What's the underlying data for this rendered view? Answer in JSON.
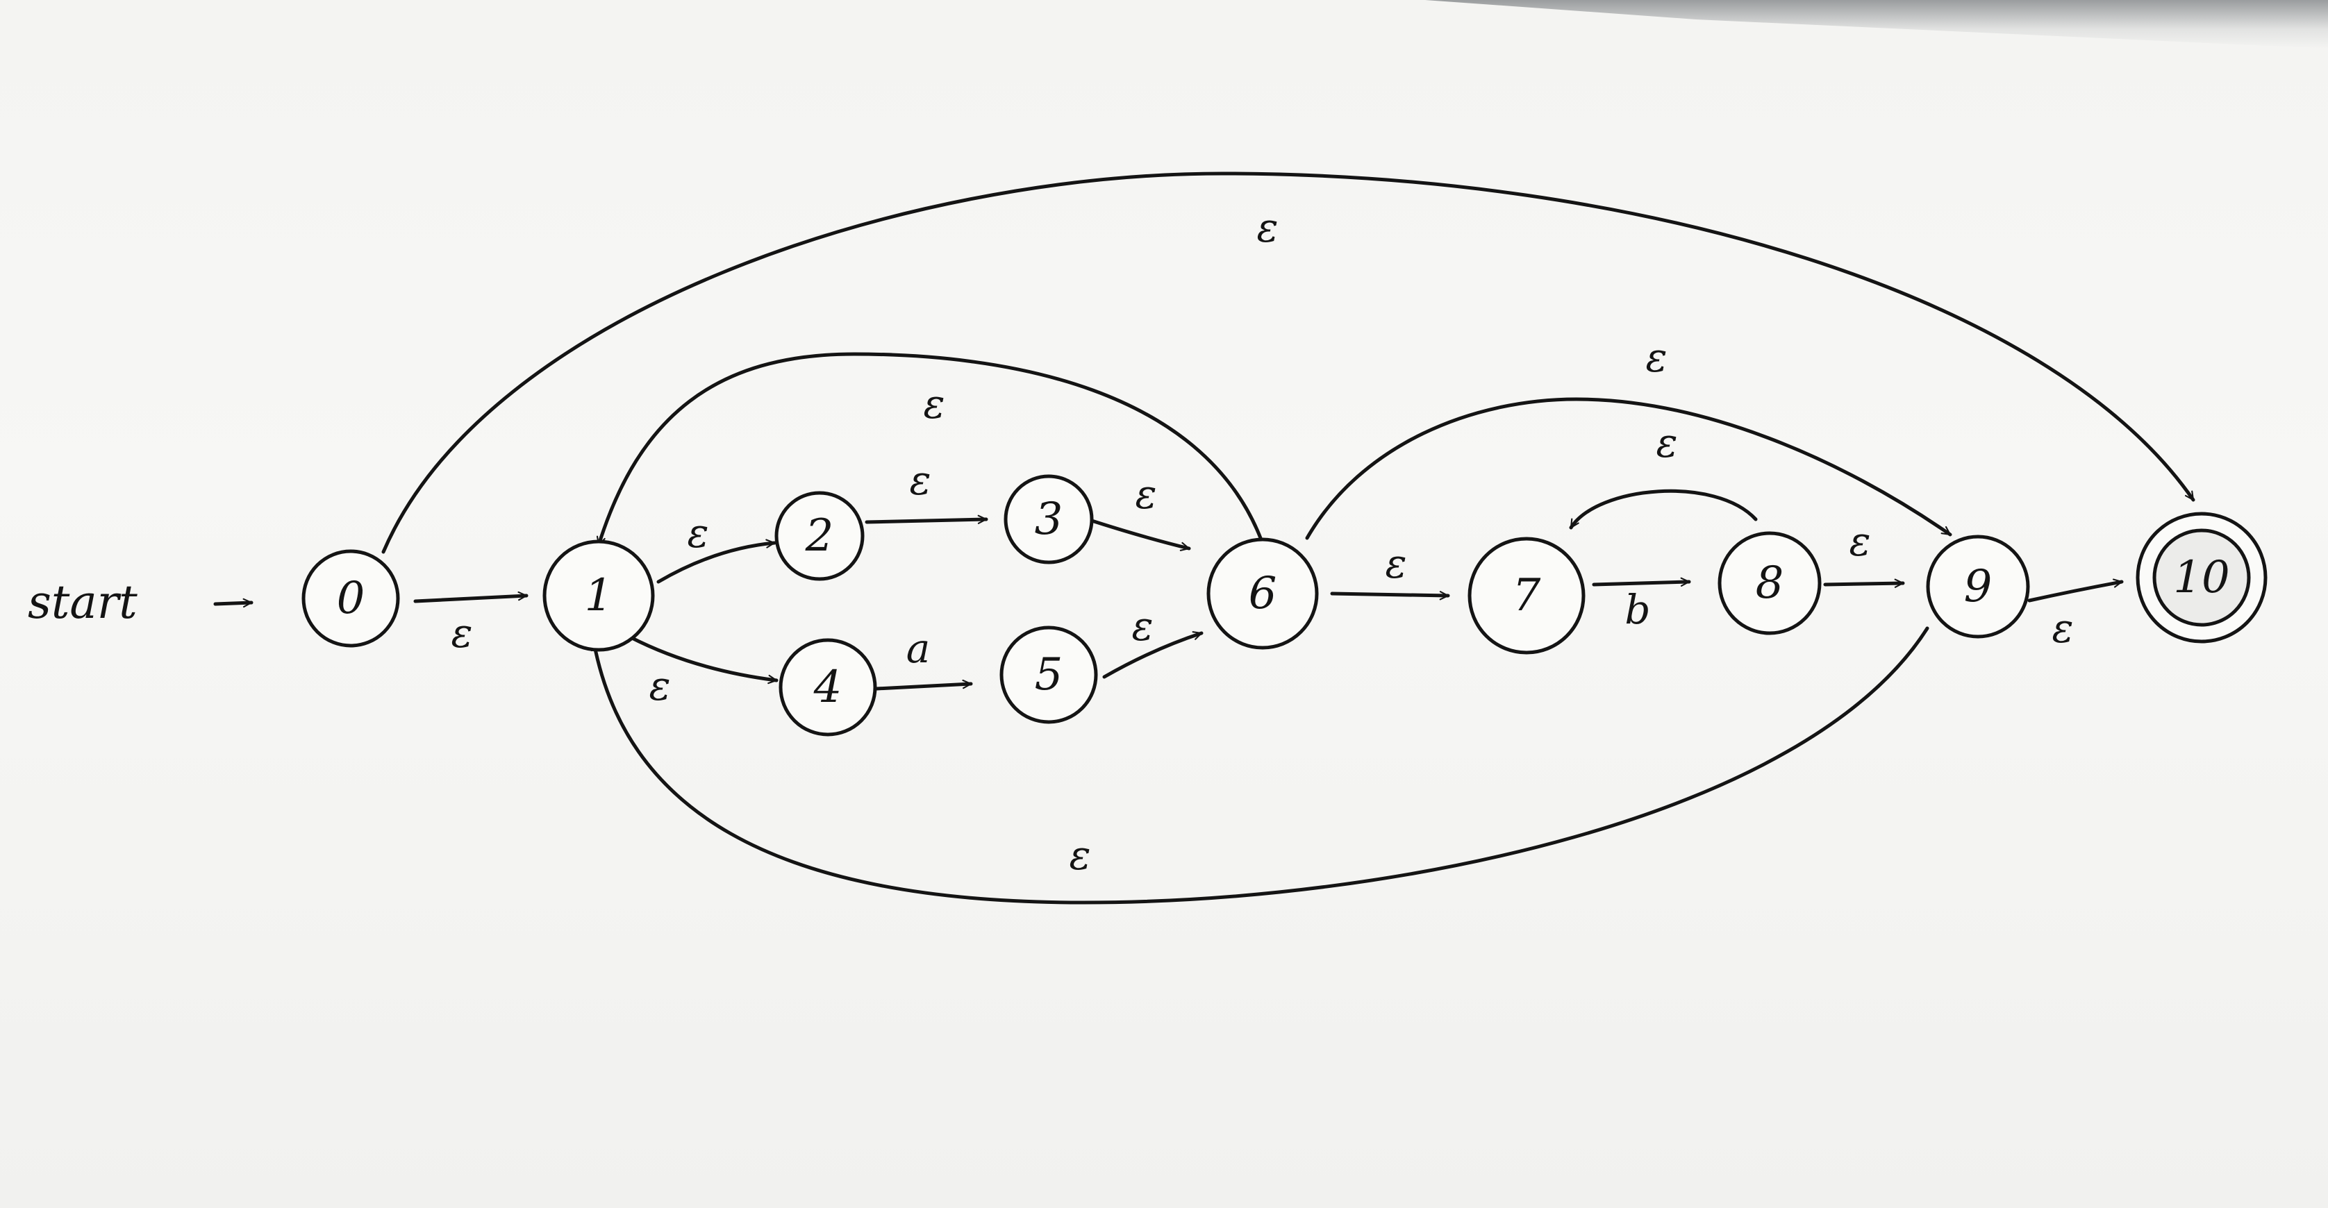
{
  "diagram": {
    "start_label": "start",
    "states": [
      {
        "id": "0",
        "label": "0",
        "accepting": false
      },
      {
        "id": "1",
        "label": "1",
        "accepting": false
      },
      {
        "id": "2",
        "label": "2",
        "accepting": false
      },
      {
        "id": "3",
        "label": "3",
        "accepting": false
      },
      {
        "id": "4",
        "label": "4",
        "accepting": false
      },
      {
        "id": "5",
        "label": "5",
        "accepting": false
      },
      {
        "id": "6",
        "label": "6",
        "accepting": false
      },
      {
        "id": "7",
        "label": "7",
        "accepting": false
      },
      {
        "id": "8",
        "label": "8",
        "accepting": false
      },
      {
        "id": "9",
        "label": "9",
        "accepting": false
      },
      {
        "id": "10",
        "label": "10",
        "accepting": true
      }
    ],
    "transitions": [
      {
        "from": "0",
        "to": "1",
        "label": "ε"
      },
      {
        "from": "1",
        "to": "2",
        "label": "ε"
      },
      {
        "from": "2",
        "to": "3",
        "label": "ε"
      },
      {
        "from": "3",
        "to": "6",
        "label": "ε"
      },
      {
        "from": "1",
        "to": "4",
        "label": "ε"
      },
      {
        "from": "4",
        "to": "5",
        "label": "a"
      },
      {
        "from": "5",
        "to": "6",
        "label": "ε"
      },
      {
        "from": "6",
        "to": "1",
        "label": "ε"
      },
      {
        "from": "6",
        "to": "7",
        "label": "ε"
      },
      {
        "from": "7",
        "to": "8",
        "label": "b"
      },
      {
        "from": "8",
        "to": "7",
        "label": "ε"
      },
      {
        "from": "8",
        "to": "9",
        "label": "ε"
      },
      {
        "from": "6",
        "to": "9",
        "label": "ε"
      },
      {
        "from": "9",
        "to": "10",
        "label": "ε"
      },
      {
        "from": "9",
        "to": "1",
        "label": "ε"
      },
      {
        "from": "0",
        "to": "10",
        "label": "ε"
      }
    ]
  }
}
